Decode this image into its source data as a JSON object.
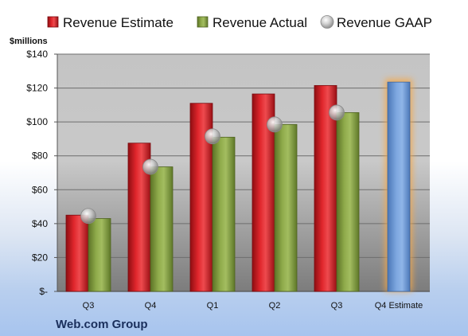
{
  "chart_data": {
    "type": "bar",
    "categories": [
      "Q3",
      "Q4",
      "Q1",
      "Q2",
      "Q3",
      "Q4 Estimate"
    ],
    "series": [
      {
        "name": "Revenue Estimate",
        "values": [
          45,
          87.5,
          111,
          116.5,
          121.5,
          null
        ],
        "color": "#c8161d"
      },
      {
        "name": "Revenue Actual",
        "values": [
          43,
          73.5,
          91,
          98.5,
          105.5,
          null
        ],
        "color": "#7f9a3c"
      },
      {
        "name": "Revenue GAAP",
        "values": [
          44.5,
          73.5,
          91.5,
          98.5,
          105.5,
          null
        ],
        "color": "#b8b8b8"
      }
    ],
    "projection": {
      "category": "Q4 Estimate",
      "value": 123.5,
      "color": "#6f9bd6",
      "glow": "#f5a849"
    },
    "ylabel": "$millions",
    "ylim": [
      0,
      140
    ],
    "yticks": [
      0,
      20,
      40,
      60,
      80,
      100,
      120,
      140
    ],
    "ytick_labels": [
      "$-",
      "$20",
      "$40",
      "$60",
      "$80",
      "$100",
      "$120",
      "$140"
    ],
    "grid": true,
    "legend": "top",
    "company_label": "Web.com Group"
  }
}
